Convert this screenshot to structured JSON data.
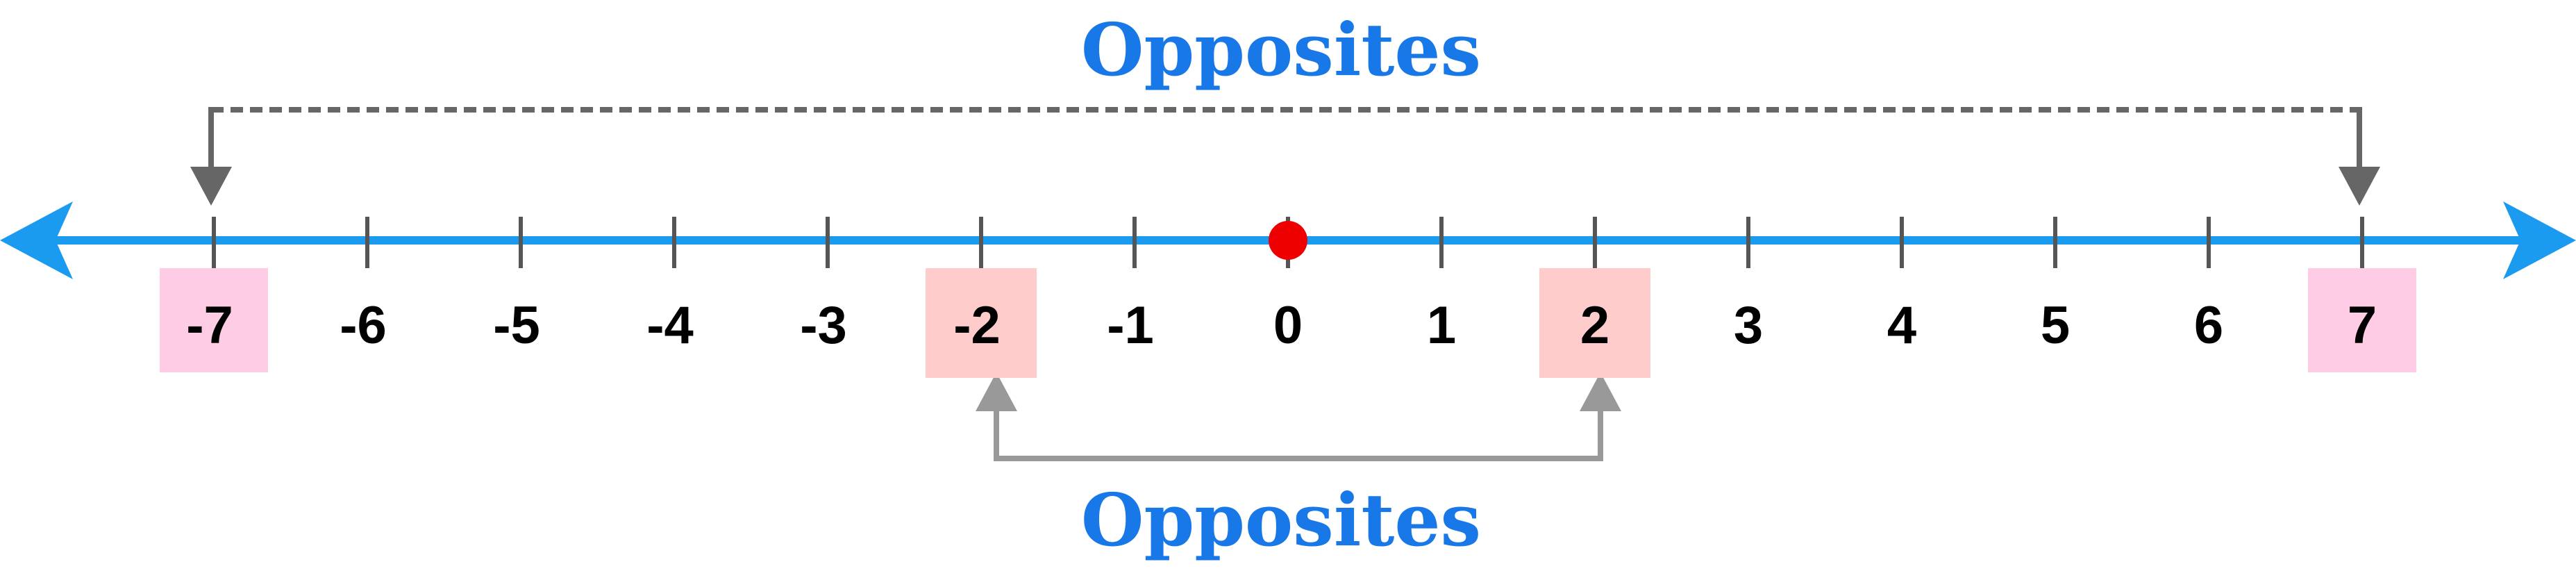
{
  "number_line": {
    "min": -7,
    "max": 7,
    "ticks": [
      -7,
      -6,
      -5,
      -4,
      -3,
      -2,
      -1,
      0,
      1,
      2,
      3,
      4,
      5,
      6,
      7
    ],
    "origin_point": 0,
    "line_color": "#1a9bf0",
    "point_color": "#ee0000",
    "label_color": "#000000"
  },
  "pairs": [
    {
      "label": "Opposites",
      "values": [
        -7,
        7
      ],
      "highlight_color": "#ffcce6",
      "connector_color": "#666666",
      "connector_style": "dashed",
      "label_position": "above"
    },
    {
      "label": "Opposites",
      "values": [
        -2,
        2
      ],
      "highlight_color": "#ffcccc",
      "connector_color": "#999999",
      "connector_style": "solid",
      "label_position": "below"
    }
  ],
  "title_color": "#1878e8",
  "tick_labels": [
    "-7",
    "-6",
    "-5",
    "-4",
    "-3",
    "-2",
    "-1",
    "0",
    "1",
    "2",
    "3",
    "4",
    "5",
    "6",
    "7"
  ]
}
